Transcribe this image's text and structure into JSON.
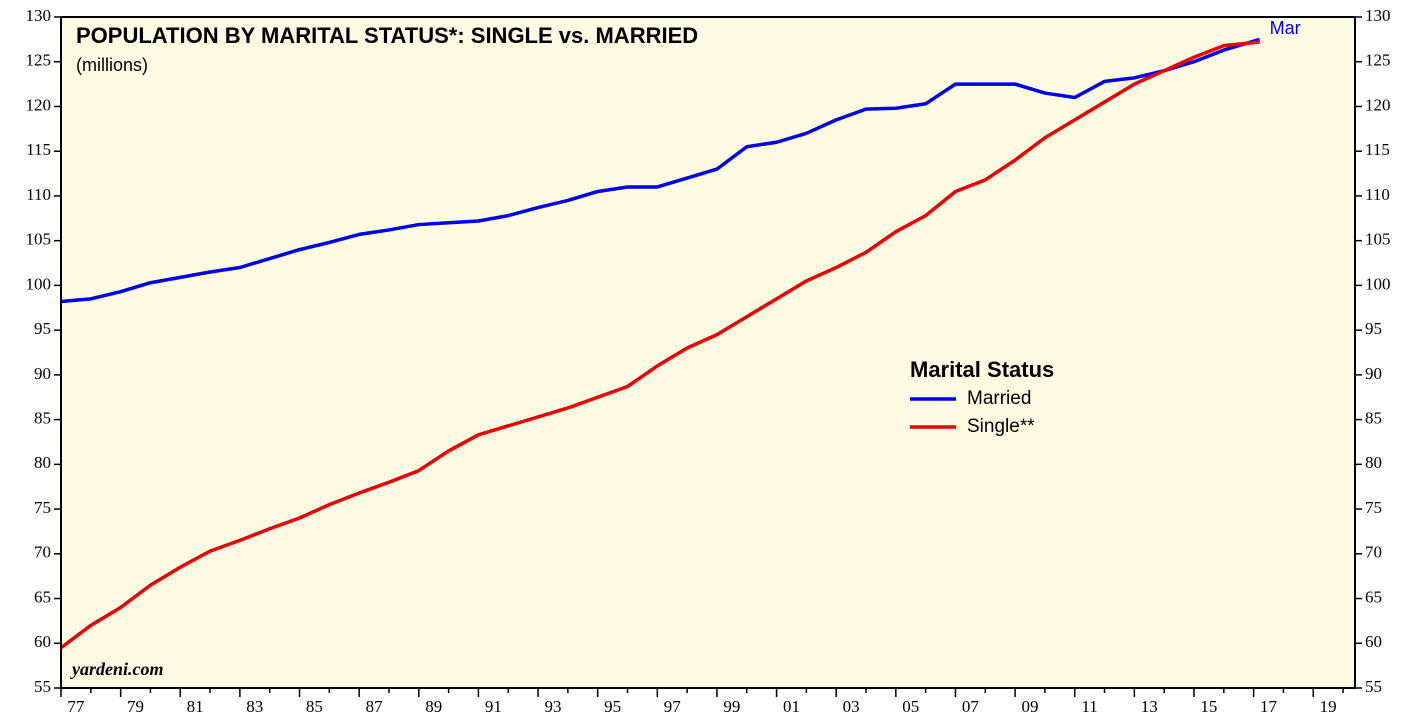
{
  "chart_data": {
    "type": "line",
    "title": "POPULATION BY MARITAL STATUS*: SINGLE vs. MARRIED",
    "subtitle": "(millions)",
    "source": "yardeni.com",
    "annotation": "Mar",
    "legend_title": "Marital Status",
    "x": [
      1977,
      1978,
      1979,
      1980,
      1981,
      1982,
      1983,
      1984,
      1985,
      1986,
      1987,
      1988,
      1989,
      1990,
      1991,
      1992,
      1993,
      1994,
      1995,
      1996,
      1997,
      1998,
      1999,
      2000,
      2001,
      2002,
      2003,
      2004,
      2005,
      2006,
      2007,
      2008,
      2009,
      2010,
      2011,
      2012,
      2013,
      2014,
      2015,
      2016,
      2017.2
    ],
    "series": [
      {
        "name": "Married",
        "color": "#0000ee",
        "values": [
          98.2,
          98.5,
          99.3,
          100.3,
          100.9,
          101.5,
          102,
          103,
          104,
          104.8,
          105.7,
          106.2,
          106.8,
          107,
          107.2,
          107.8,
          108.7,
          109.5,
          110.5,
          111,
          111,
          112,
          113,
          115.5,
          116,
          117,
          118.5,
          119.7,
          119.8,
          120.3,
          122.5,
          122.5,
          122.5,
          121.5,
          121,
          122.8,
          123.2,
          124,
          125,
          126.3,
          127.5
        ]
      },
      {
        "name": "Single**",
        "color": "#ee0000",
        "values": [
          59.5,
          62,
          64,
          66.5,
          68.5,
          70.3,
          71.5,
          72.8,
          74,
          75.5,
          76.8,
          78,
          79.3,
          81.5,
          83.3,
          84.3,
          85.3,
          86.3,
          87.5,
          88.7,
          91,
          93,
          94.5,
          96.5,
          98.5,
          100.5,
          102,
          103.7,
          106,
          107.8,
          110.5,
          111.8,
          114,
          116.5,
          118.5,
          120.5,
          122.5,
          124,
          125.5,
          126.8,
          127.2
        ]
      }
    ],
    "xlim": [
      1977,
      2020.4
    ],
    "xticks": [
      {
        "value": 1977,
        "label": "77"
      },
      {
        "value": 1979,
        "label": "79"
      },
      {
        "value": 1981,
        "label": "81"
      },
      {
        "value": 1983,
        "label": "83"
      },
      {
        "value": 1985,
        "label": "85"
      },
      {
        "value": 1987,
        "label": "87"
      },
      {
        "value": 1989,
        "label": "89"
      },
      {
        "value": 1991,
        "label": "91"
      },
      {
        "value": 1993,
        "label": "93"
      },
      {
        "value": 1995,
        "label": "95"
      },
      {
        "value": 1997,
        "label": "97"
      },
      {
        "value": 1999,
        "label": "99"
      },
      {
        "value": 2001,
        "label": "01"
      },
      {
        "value": 2003,
        "label": "03"
      },
      {
        "value": 2005,
        "label": "05"
      },
      {
        "value": 2007,
        "label": "07"
      },
      {
        "value": 2009,
        "label": "09"
      },
      {
        "value": 2011,
        "label": "11"
      },
      {
        "value": 2013,
        "label": "13"
      },
      {
        "value": 2015,
        "label": "15"
      },
      {
        "value": 2017,
        "label": "17"
      },
      {
        "value": 2019,
        "label": "19"
      }
    ],
    "ylim": [
      55,
      130
    ],
    "yticks": [
      55,
      60,
      65,
      70,
      75,
      80,
      85,
      90,
      95,
      100,
      105,
      110,
      115,
      120,
      125,
      130
    ]
  }
}
